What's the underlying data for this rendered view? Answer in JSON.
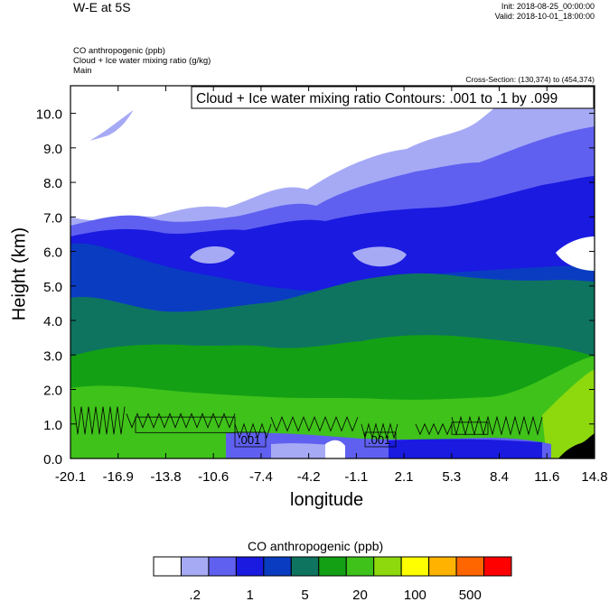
{
  "header": {
    "title": "W-E at 5S",
    "init": "Init: 2018-08-25_00:00:00",
    "valid": "Valid: 2018-10-01_18:00:00",
    "fields": [
      "CO anthropogenic   (ppb)",
      "Cloud + Ice water mixing ratio   (g/kg)",
      "Main"
    ],
    "cross_section": "Cross-Section: (130,374) to (454,374)"
  },
  "colors": {
    "bands": [
      "#ffffff",
      "#a6aaf5",
      "#5f60f0",
      "#1a1ae0",
      "#0a3cc2",
      "#0e7460",
      "#13a014",
      "#3fc21a",
      "#8ed80e",
      "#ffff00",
      "#ffb300",
      "#ff6600",
      "#ff0000"
    ]
  },
  "chart_data": {
    "type": "heatmap",
    "title": "Cloud + Ice water mixing ratio Contours: .001 to .1 by .099",
    "xlabel": "longitude",
    "ylabel": "Height (km)",
    "x_ticks": [
      "-20.1",
      "-16.9",
      "-13.8",
      "-10.6",
      "-7.4",
      "-4.2",
      "-1.1",
      "2.1",
      "5.3",
      "8.4",
      "11.6",
      "14.8"
    ],
    "y_ticks": [
      "0.0",
      "1.0",
      "2.0",
      "3.0",
      "4.0",
      "5.0",
      "6.0",
      "7.0",
      "8.0",
      "9.0",
      "10.0"
    ],
    "xlim": [
      -20.1,
      14.8
    ],
    "ylim": [
      0.0,
      10.8
    ],
    "contour_labels": [
      ".001",
      ".001"
    ],
    "colorbar": {
      "title": "CO anthropogenic  (ppb)",
      "tick_labels": [
        ".2",
        "1",
        "5",
        "20",
        "100",
        "500"
      ]
    }
  }
}
